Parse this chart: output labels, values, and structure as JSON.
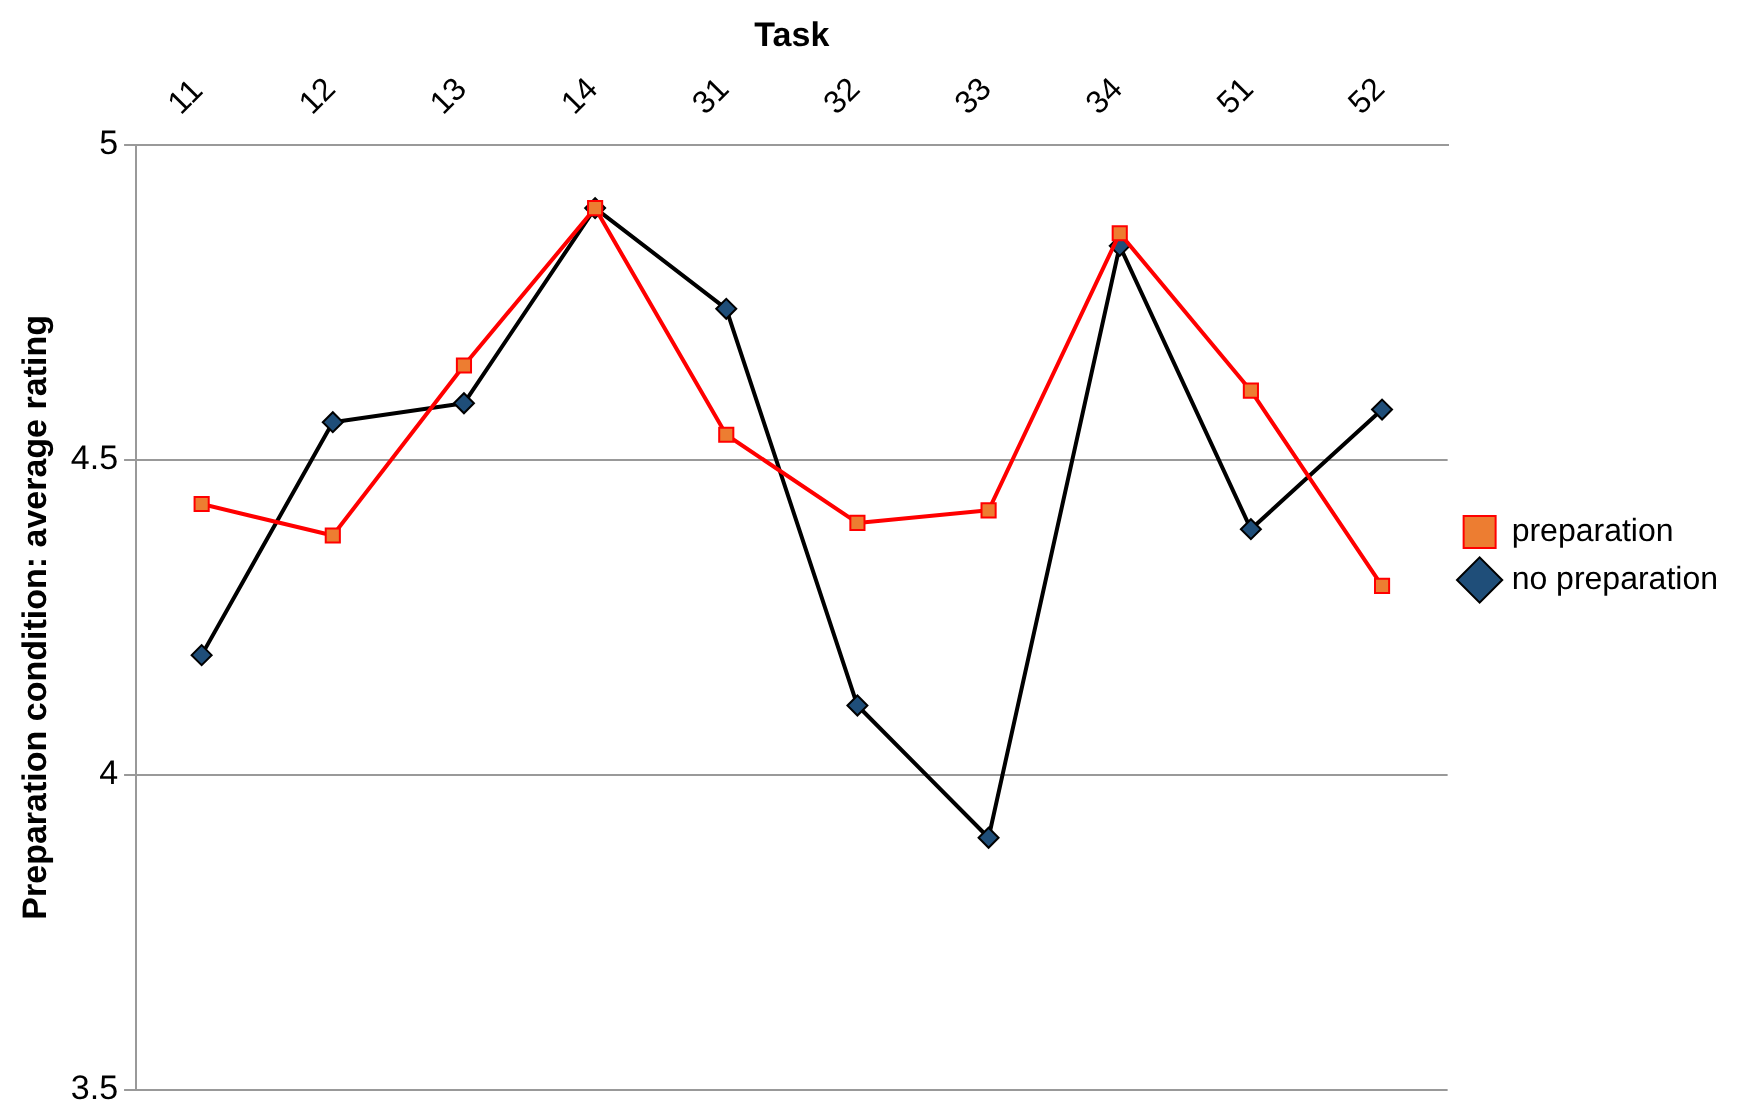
{
  "chart_data": {
    "type": "line",
    "xlabel": "Task",
    "ylabel": "Preparation condition: average rating",
    "categories": [
      "11",
      "12",
      "13",
      "14",
      "31",
      "32",
      "33",
      "34",
      "51",
      "52"
    ],
    "series": [
      {
        "name": "no preparation",
        "color": "#000000",
        "marker": "diamond",
        "values": [
          4.19,
          4.56,
          4.59,
          4.9,
          4.74,
          4.11,
          3.9,
          4.84,
          4.39,
          4.58
        ]
      },
      {
        "name": "preparation",
        "color": "#ff0000",
        "marker": "square",
        "values": [
          4.43,
          4.38,
          4.65,
          4.9,
          4.54,
          4.4,
          4.42,
          4.86,
          4.61,
          4.3
        ]
      }
    ],
    "ylim": [
      3.5,
      5
    ],
    "yticks": [
      3.5,
      4,
      4.5,
      5
    ],
    "grid": "y",
    "legend": "right",
    "line_style": "solid"
  }
}
